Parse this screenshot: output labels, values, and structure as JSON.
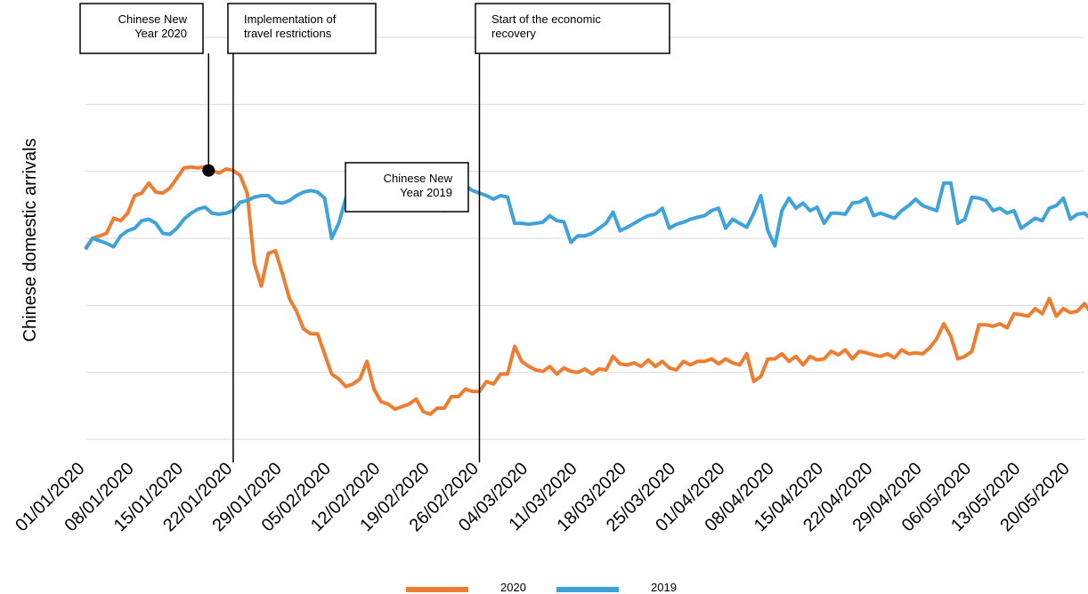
{
  "chart_data": {
    "type": "line",
    "title": "",
    "xlabel": "",
    "ylabel": "Chinese domestic arrivals",
    "grid": true,
    "y_ticks_shown": false,
    "legend_position": "bottom-center",
    "x_tick_labels": [
      "01/01/2020",
      "08/01/2020",
      "15/01/2020",
      "22/01/2020",
      "29/01/2020",
      "05/02/2020",
      "12/02/2020",
      "19/02/2020",
      "26/02/2020",
      "04/03/2020",
      "11/03/2020",
      "18/03/2020",
      "25/03/2020",
      "01/04/2020",
      "08/04/2020",
      "15/04/2020",
      "22/04/2020",
      "29/04/2020",
      "06/05/2020",
      "13/05/2020",
      "20/05/2020"
    ],
    "x_tick_days": [
      0,
      7,
      14,
      21,
      28,
      35,
      42,
      49,
      56,
      63,
      70,
      77,
      84,
      91,
      98,
      105,
      112,
      119,
      126,
      133,
      140
    ],
    "xlim": [
      0,
      142
    ],
    "ylim": [
      0,
      8
    ],
    "series": [
      {
        "name": "2020",
        "color": "#ed7d31",
        "points": [
          [
            0,
            3.8
          ],
          [
            1,
            4.0
          ],
          [
            2,
            4.05
          ],
          [
            3,
            4.1
          ],
          [
            4,
            4.4
          ],
          [
            5,
            4.35
          ],
          [
            6,
            4.5
          ],
          [
            7,
            4.85
          ],
          [
            8,
            4.9
          ],
          [
            9,
            5.1
          ],
          [
            10,
            4.92
          ],
          [
            11,
            4.9
          ],
          [
            12,
            5.0
          ],
          [
            13,
            5.2
          ],
          [
            14,
            5.4
          ],
          [
            15,
            5.42
          ],
          [
            16,
            5.4
          ],
          [
            17,
            5.43
          ],
          [
            18,
            5.35
          ],
          [
            19,
            5.3
          ],
          [
            20,
            5.38
          ],
          [
            21,
            5.35
          ],
          [
            22,
            5.25
          ],
          [
            23,
            4.9
          ],
          [
            24,
            3.5
          ],
          [
            25,
            3.05
          ],
          [
            26,
            3.7
          ],
          [
            27,
            3.75
          ],
          [
            28,
            3.3
          ],
          [
            29,
            2.8
          ],
          [
            30,
            2.55
          ],
          [
            31,
            2.2
          ],
          [
            32,
            2.1
          ],
          [
            33,
            2.1
          ],
          [
            34,
            1.7
          ],
          [
            35,
            1.3
          ],
          [
            36,
            1.2
          ],
          [
            37,
            1.05
          ],
          [
            38,
            1.1
          ],
          [
            39,
            1.2
          ],
          [
            40,
            1.55
          ],
          [
            41,
            1.0
          ],
          [
            42,
            0.75
          ],
          [
            43,
            0.7
          ],
          [
            44,
            0.6
          ],
          [
            45,
            0.65
          ],
          [
            46,
            0.7
          ],
          [
            47,
            0.8
          ],
          [
            48,
            0.55
          ],
          [
            49,
            0.5
          ],
          [
            50,
            0.62
          ],
          [
            51,
            0.62
          ],
          [
            52,
            0.85
          ],
          [
            53,
            0.85
          ],
          [
            54,
            1.0
          ],
          [
            55,
            0.95
          ],
          [
            56,
            0.95
          ],
          [
            57,
            1.15
          ],
          [
            58,
            1.1
          ],
          [
            59,
            1.3
          ],
          [
            60,
            1.3
          ],
          [
            61,
            1.85
          ],
          [
            62,
            1.55
          ],
          [
            63,
            1.45
          ],
          [
            64,
            1.38
          ],
          [
            65,
            1.35
          ],
          [
            66,
            1.45
          ],
          [
            67,
            1.3
          ],
          [
            68,
            1.42
          ],
          [
            69,
            1.35
          ],
          [
            70,
            1.33
          ],
          [
            71,
            1.4
          ],
          [
            72,
            1.3
          ],
          [
            73,
            1.4
          ],
          [
            74,
            1.38
          ],
          [
            75,
            1.65
          ],
          [
            76,
            1.5
          ],
          [
            77,
            1.48
          ],
          [
            78,
            1.52
          ],
          [
            79,
            1.45
          ],
          [
            80,
            1.58
          ],
          [
            81,
            1.45
          ],
          [
            82,
            1.55
          ],
          [
            83,
            1.42
          ],
          [
            84,
            1.38
          ],
          [
            85,
            1.55
          ],
          [
            86,
            1.48
          ],
          [
            87,
            1.55
          ],
          [
            88,
            1.55
          ],
          [
            89,
            1.6
          ],
          [
            90,
            1.5
          ],
          [
            91,
            1.6
          ],
          [
            92,
            1.52
          ],
          [
            93,
            1.48
          ],
          [
            94,
            1.7
          ],
          [
            95,
            1.15
          ],
          [
            96,
            1.25
          ],
          [
            97,
            1.6
          ],
          [
            98,
            1.6
          ],
          [
            99,
            1.7
          ],
          [
            100,
            1.55
          ],
          [
            101,
            1.65
          ],
          [
            102,
            1.48
          ],
          [
            103,
            1.65
          ],
          [
            104,
            1.58
          ],
          [
            105,
            1.6
          ],
          [
            106,
            1.75
          ],
          [
            107,
            1.68
          ],
          [
            108,
            1.78
          ],
          [
            109,
            1.6
          ],
          [
            110,
            1.75
          ],
          [
            111,
            1.72
          ],
          [
            112,
            1.68
          ],
          [
            113,
            1.65
          ],
          [
            114,
            1.7
          ],
          [
            115,
            1.62
          ],
          [
            116,
            1.78
          ],
          [
            117,
            1.7
          ],
          [
            118,
            1.72
          ],
          [
            119,
            1.7
          ],
          [
            120,
            1.82
          ],
          [
            121,
            2.0
          ],
          [
            122,
            2.3
          ],
          [
            123,
            2.05
          ],
          [
            124,
            1.6
          ],
          [
            125,
            1.65
          ],
          [
            126,
            1.75
          ],
          [
            127,
            2.28
          ],
          [
            128,
            2.28
          ],
          [
            129,
            2.25
          ],
          [
            130,
            2.3
          ],
          [
            131,
            2.22
          ],
          [
            132,
            2.5
          ],
          [
            133,
            2.48
          ],
          [
            134,
            2.45
          ],
          [
            135,
            2.6
          ],
          [
            136,
            2.5
          ],
          [
            137,
            2.8
          ],
          [
            138,
            2.45
          ],
          [
            139,
            2.6
          ],
          [
            140,
            2.52
          ],
          [
            141,
            2.55
          ],
          [
            142,
            2.7
          ],
          [
            143,
            2.5
          ]
        ]
      },
      {
        "name": "2019",
        "color": "#3fa2db",
        "points": [
          [
            0,
            3.78
          ],
          [
            1,
            4.0
          ],
          [
            2,
            3.95
          ],
          [
            3,
            3.9
          ],
          [
            4,
            3.83
          ],
          [
            5,
            4.05
          ],
          [
            6,
            4.15
          ],
          [
            7,
            4.2
          ],
          [
            8,
            4.35
          ],
          [
            9,
            4.38
          ],
          [
            10,
            4.3
          ],
          [
            11,
            4.1
          ],
          [
            12,
            4.08
          ],
          [
            13,
            4.2
          ],
          [
            14,
            4.38
          ],
          [
            15,
            4.5
          ],
          [
            16,
            4.58
          ],
          [
            17,
            4.62
          ],
          [
            18,
            4.5
          ],
          [
            19,
            4.48
          ],
          [
            20,
            4.5
          ],
          [
            21,
            4.55
          ],
          [
            22,
            4.72
          ],
          [
            23,
            4.75
          ],
          [
            24,
            4.82
          ],
          [
            25,
            4.85
          ],
          [
            26,
            4.85
          ],
          [
            27,
            4.72
          ],
          [
            28,
            4.7
          ],
          [
            29,
            4.75
          ],
          [
            30,
            4.85
          ],
          [
            31,
            4.92
          ],
          [
            32,
            4.95
          ],
          [
            33,
            4.92
          ],
          [
            34,
            4.8
          ],
          [
            35,
            4.0
          ],
          [
            36,
            4.3
          ],
          [
            37,
            4.8
          ],
          [
            38,
            5.05
          ],
          [
            39,
            5.1
          ],
          [
            40,
            5.25
          ],
          [
            41,
            5.38
          ],
          [
            42,
            5.35
          ],
          [
            43,
            5.32
          ],
          [
            44,
            5.3
          ],
          [
            45,
            5.2
          ],
          [
            46,
            4.95
          ],
          [
            47,
            4.95
          ],
          [
            48,
            4.85
          ],
          [
            49,
            4.8
          ],
          [
            50,
            4.65
          ],
          [
            51,
            4.55
          ],
          [
            52,
            5.2
          ],
          [
            53,
            5.05
          ],
          [
            54,
            5.05
          ],
          [
            55,
            4.95
          ],
          [
            56,
            4.9
          ],
          [
            57,
            4.85
          ],
          [
            58,
            4.78
          ],
          [
            59,
            4.85
          ],
          [
            60,
            4.82
          ],
          [
            61,
            4.3
          ],
          [
            62,
            4.3
          ],
          [
            63,
            4.28
          ],
          [
            64,
            4.3
          ],
          [
            65,
            4.32
          ],
          [
            66,
            4.45
          ],
          [
            67,
            4.35
          ],
          [
            68,
            4.33
          ],
          [
            69,
            3.92
          ],
          [
            70,
            4.05
          ],
          [
            71,
            4.05
          ],
          [
            72,
            4.1
          ],
          [
            73,
            4.2
          ],
          [
            74,
            4.3
          ],
          [
            75,
            4.52
          ],
          [
            76,
            4.15
          ],
          [
            77,
            4.22
          ],
          [
            78,
            4.3
          ],
          [
            79,
            4.38
          ],
          [
            80,
            4.45
          ],
          [
            81,
            4.48
          ],
          [
            82,
            4.6
          ],
          [
            83,
            4.2
          ],
          [
            84,
            4.28
          ],
          [
            85,
            4.32
          ],
          [
            86,
            4.38
          ],
          [
            87,
            4.42
          ],
          [
            88,
            4.45
          ],
          [
            89,
            4.55
          ],
          [
            90,
            4.6
          ],
          [
            91,
            4.2
          ],
          [
            92,
            4.38
          ],
          [
            93,
            4.3
          ],
          [
            94,
            4.22
          ],
          [
            95,
            4.5
          ],
          [
            96,
            4.85
          ],
          [
            97,
            4.15
          ],
          [
            98,
            3.85
          ],
          [
            99,
            4.55
          ],
          [
            100,
            4.8
          ],
          [
            101,
            4.6
          ],
          [
            102,
            4.7
          ],
          [
            103,
            4.55
          ],
          [
            104,
            4.62
          ],
          [
            105,
            4.3
          ],
          [
            106,
            4.5
          ],
          [
            107,
            4.5
          ],
          [
            108,
            4.48
          ],
          [
            109,
            4.7
          ],
          [
            110,
            4.72
          ],
          [
            111,
            4.8
          ],
          [
            112,
            4.45
          ],
          [
            113,
            4.5
          ],
          [
            114,
            4.45
          ],
          [
            115,
            4.4
          ],
          [
            116,
            4.55
          ],
          [
            117,
            4.65
          ],
          [
            118,
            4.78
          ],
          [
            119,
            4.65
          ],
          [
            120,
            4.6
          ],
          [
            121,
            4.55
          ],
          [
            122,
            5.1
          ],
          [
            123,
            5.1
          ],
          [
            124,
            4.3
          ],
          [
            125,
            4.38
          ],
          [
            126,
            4.82
          ],
          [
            127,
            4.8
          ],
          [
            128,
            4.75
          ],
          [
            129,
            4.55
          ],
          [
            130,
            4.6
          ],
          [
            131,
            4.5
          ],
          [
            132,
            4.55
          ],
          [
            133,
            4.2
          ],
          [
            134,
            4.3
          ],
          [
            135,
            4.4
          ],
          [
            136,
            4.35
          ],
          [
            137,
            4.6
          ],
          [
            138,
            4.65
          ],
          [
            139,
            4.8
          ],
          [
            140,
            4.38
          ],
          [
            141,
            4.48
          ],
          [
            142,
            4.5
          ],
          [
            143,
            4.38
          ],
          [
            144,
            4.55
          ]
        ]
      }
    ],
    "annotations": [
      {
        "id": "cny-2020",
        "lines": [
          "Chinese New",
          "Year 2020"
        ],
        "day": 17.5,
        "value": 5.35,
        "marker": true,
        "vertical_line": false
      },
      {
        "id": "travel-restrictions",
        "lines": [
          "Implementation  of",
          "travel restrictions"
        ],
        "day": 21,
        "vertical_line": true
      },
      {
        "id": "cny-2019",
        "lines": [
          "Chinese New",
          "Year 2019"
        ],
        "day": 38.2,
        "value": 5.05,
        "marker": true,
        "vertical_line": false
      },
      {
        "id": "economic-recovery",
        "lines": [
          "Start of the economic",
          "recovery"
        ],
        "day": 56,
        "vertical_line": true
      }
    ]
  }
}
